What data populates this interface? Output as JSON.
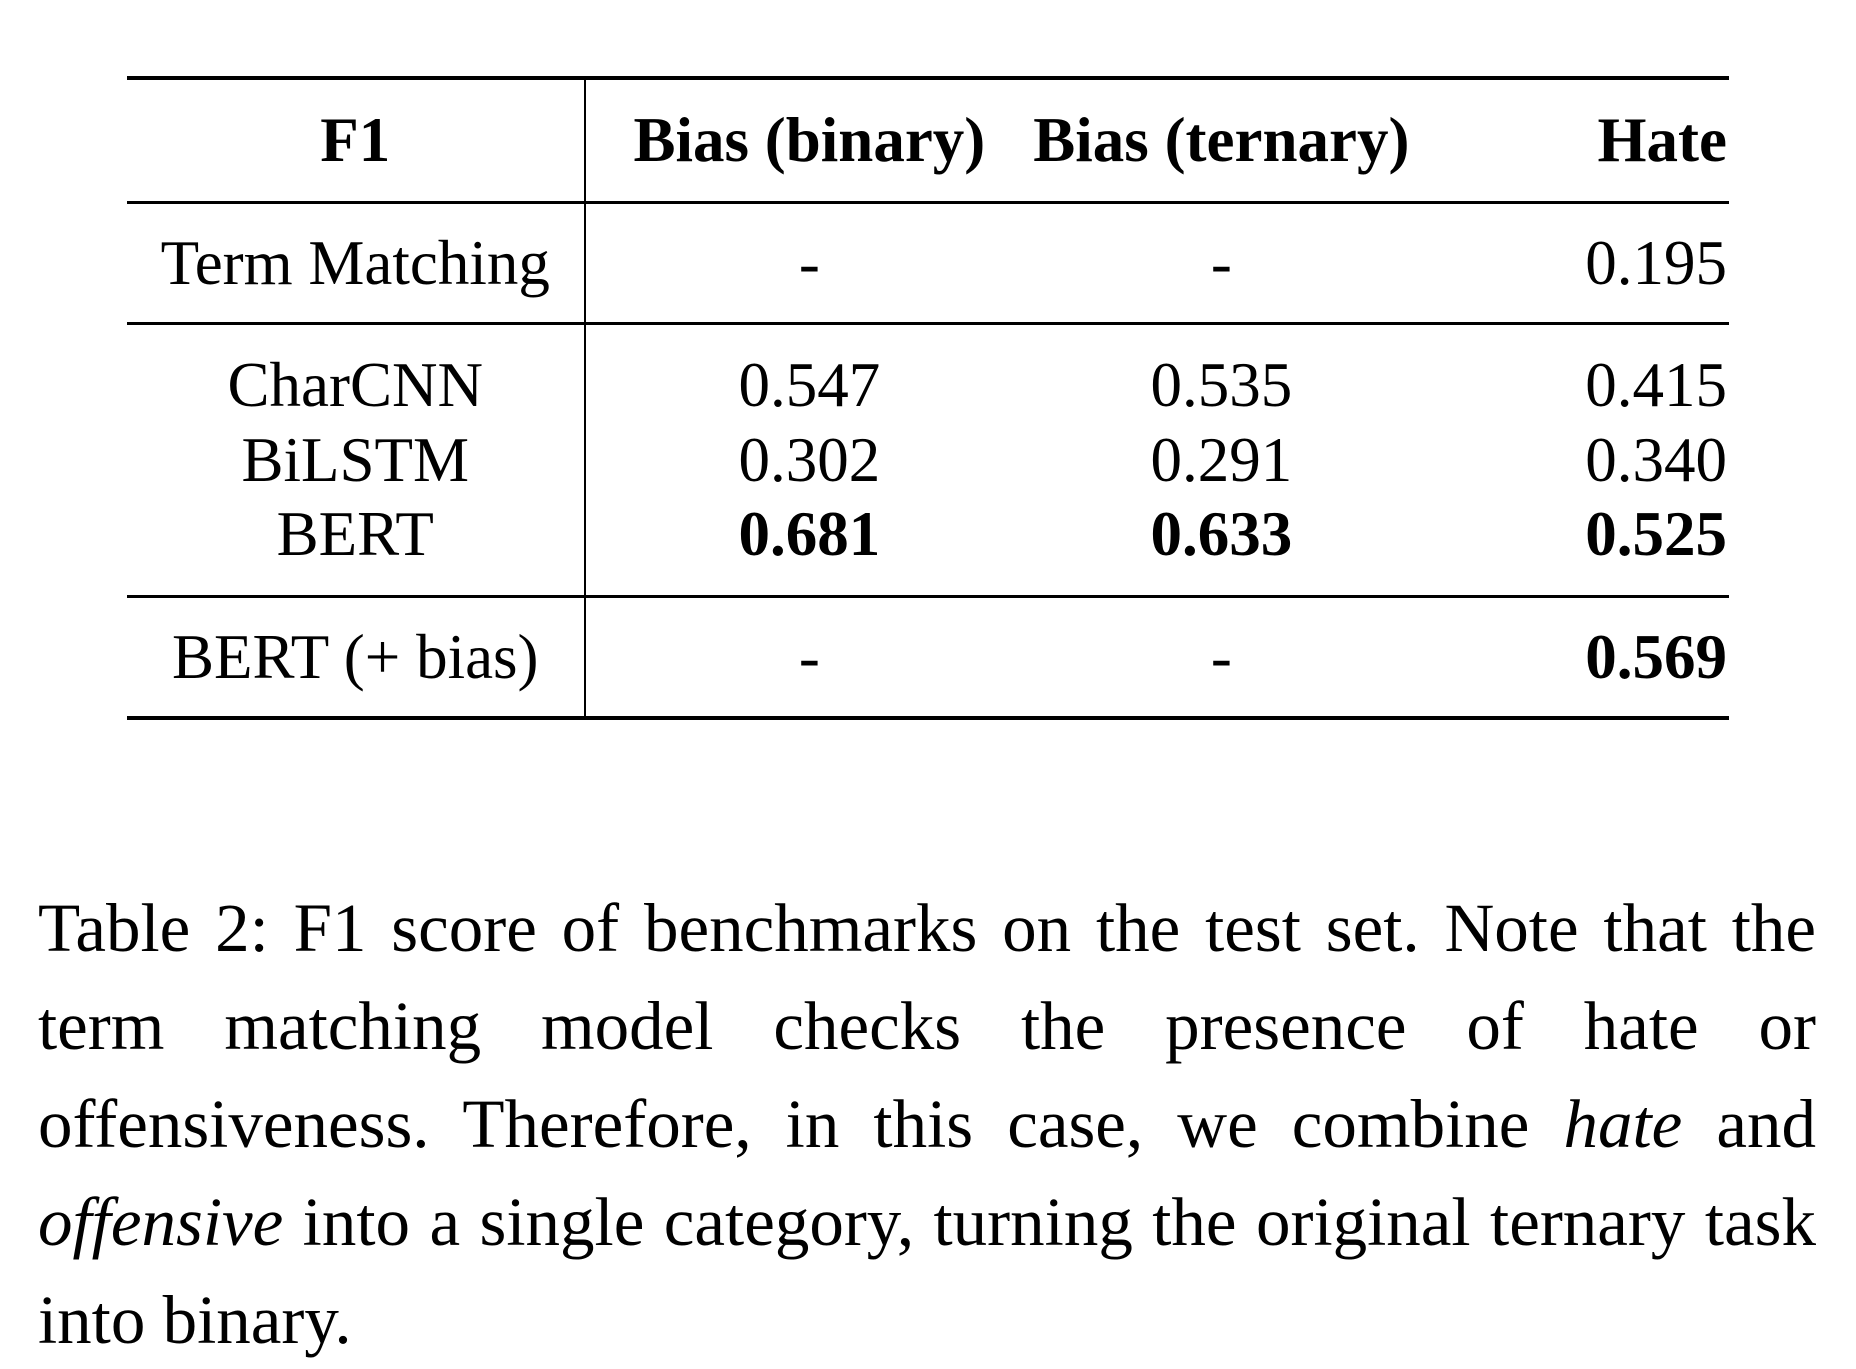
{
  "table": {
    "columns": [
      "F1",
      "Bias (binary)",
      "Bias (ternary)",
      "Hate"
    ],
    "groups": [
      {
        "rows": [
          {
            "model": "Term Matching",
            "values": [
              "-",
              "-",
              "0.195"
            ],
            "bold": [
              false,
              false,
              false
            ]
          }
        ]
      },
      {
        "rows": [
          {
            "model": "CharCNN",
            "values": [
              "0.547",
              "0.535",
              "0.415"
            ],
            "bold": [
              false,
              false,
              false
            ]
          },
          {
            "model": "BiLSTM",
            "values": [
              "0.302",
              "0.291",
              "0.340"
            ],
            "bold": [
              false,
              false,
              false
            ]
          },
          {
            "model": "BERT",
            "values": [
              "0.681",
              "0.633",
              "0.525"
            ],
            "bold": [
              true,
              true,
              true
            ]
          }
        ]
      },
      {
        "rows": [
          {
            "model": "BERT (+ bias)",
            "values": [
              "-",
              "-",
              "0.569"
            ],
            "bold": [
              false,
              false,
              true
            ]
          }
        ]
      }
    ]
  },
  "caption": {
    "text_1": "Table 2: F1 score of benchmarks on the test set. Note that the term matching model checks the presence of hate or offensiveness. Therefore, in this case, we combine ",
    "italic_1": "hate",
    "text_2": " and ",
    "italic_2": "offensive",
    "text_3": " into a single category, turning the original ternary task into binary."
  }
}
